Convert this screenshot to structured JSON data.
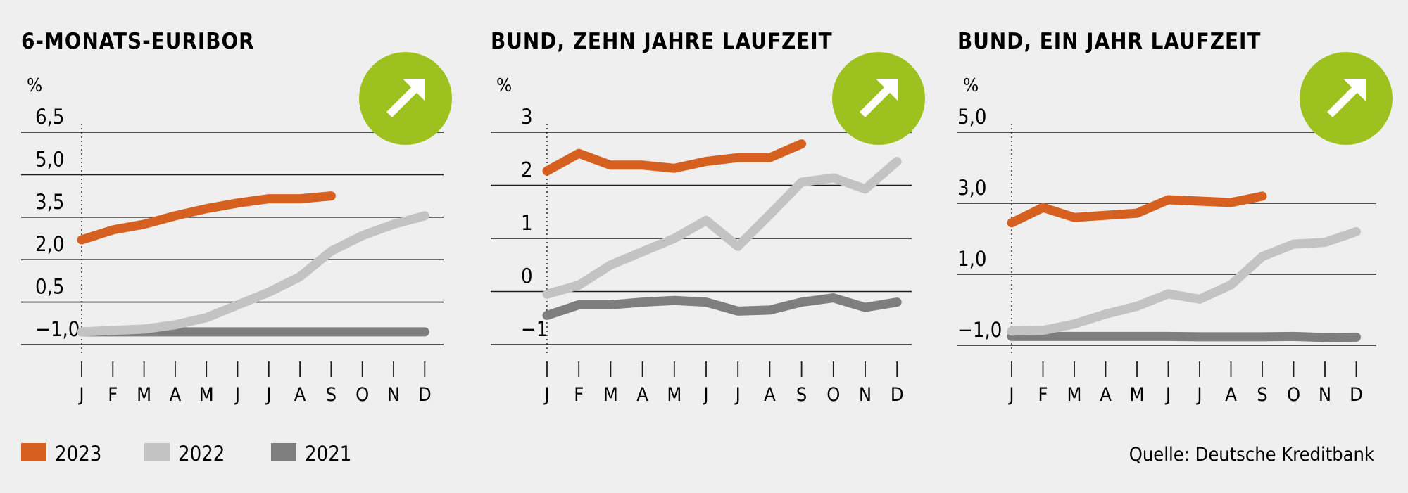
{
  "colors": {
    "series_2023": "#d5601f",
    "series_2022": "#c3c3c3",
    "series_2021": "#7e7e7e",
    "badge": "#9dc21f",
    "background": "#efefef",
    "gridline": "#1d1d1b"
  },
  "badge_icon": "arrow-up-right-icon",
  "legend": [
    {
      "key": "2023",
      "label": "2023",
      "color": "#d5601f"
    },
    {
      "key": "2022",
      "label": "2022",
      "color": "#c3c3c3"
    },
    {
      "key": "2021",
      "label": "2021",
      "color": "#7e7e7e"
    }
  ],
  "source": "Quelle: Deutsche Kreditbank",
  "chart_data": [
    {
      "type": "line",
      "title": "6-MONATS-EURIBOR",
      "unit": "%",
      "x": [
        "J",
        "F",
        "M",
        "A",
        "M",
        "J",
        "J",
        "A",
        "S",
        "O",
        "N",
        "D"
      ],
      "yticks": [
        -1.0,
        0.5,
        2.0,
        3.5,
        5.0,
        6.5
      ],
      "ytick_labels": [
        "−1,0",
        "0,5",
        "2,0",
        "3,5",
        "5,0",
        "6,5"
      ],
      "ylim": [
        -1.0,
        6.5
      ],
      "grid": true,
      "series": [
        {
          "name": "2023",
          "values": [
            2.7,
            3.05,
            3.25,
            3.55,
            3.8,
            4.0,
            4.15,
            4.15,
            4.25,
            null,
            null,
            null
          ]
        },
        {
          "name": "2022",
          "values": [
            -0.55,
            -0.5,
            -0.45,
            -0.3,
            -0.05,
            0.4,
            0.85,
            1.4,
            2.3,
            2.85,
            3.25,
            3.55
          ]
        },
        {
          "name": "2021",
          "values": [
            -0.55,
            -0.55,
            -0.55,
            -0.55,
            -0.55,
            -0.55,
            -0.55,
            -0.55,
            -0.55,
            -0.55,
            -0.55,
            -0.55
          ]
        }
      ]
    },
    {
      "type": "line",
      "title": "BUND, ZEHN JAHRE LAUFZEIT",
      "unit": "%",
      "x": [
        "J",
        "F",
        "M",
        "A",
        "M",
        "J",
        "J",
        "A",
        "S",
        "O",
        "N",
        "D"
      ],
      "yticks": [
        -1,
        0,
        1,
        2,
        3
      ],
      "ytick_labels": [
        "−1",
        "0",
        "1",
        "2",
        "3"
      ],
      "ylim": [
        -1,
        3
      ],
      "grid": true,
      "series": [
        {
          "name": "2023",
          "values": [
            2.27,
            2.6,
            2.38,
            2.38,
            2.32,
            2.45,
            2.52,
            2.52,
            2.78,
            null,
            null,
            null
          ]
        },
        {
          "name": "2022",
          "values": [
            -0.05,
            0.12,
            0.5,
            0.75,
            1.0,
            1.34,
            0.85,
            1.45,
            2.06,
            2.14,
            1.93,
            2.45
          ]
        },
        {
          "name": "2021",
          "values": [
            -0.45,
            -0.25,
            -0.25,
            -0.2,
            -0.17,
            -0.2,
            -0.37,
            -0.35,
            -0.2,
            -0.12,
            -0.3,
            -0.2
          ]
        }
      ]
    },
    {
      "type": "line",
      "title": "BUND, EIN JAHR LAUFZEIT",
      "unit": "%",
      "x": [
        "J",
        "F",
        "M",
        "A",
        "M",
        "J",
        "J",
        "A",
        "S",
        "O",
        "N",
        "D"
      ],
      "yticks": [
        -1.0,
        1.0,
        3.0,
        5.0
      ],
      "ytick_labels": [
        "−1,0",
        "1,0",
        "3,0",
        "5,0"
      ],
      "ylim": [
        -1.0,
        5.0
      ],
      "grid": true,
      "series": [
        {
          "name": "2023",
          "values": [
            2.45,
            2.88,
            2.6,
            2.66,
            2.72,
            3.1,
            3.06,
            3.02,
            3.2,
            null,
            null,
            null
          ]
        },
        {
          "name": "2022",
          "values": [
            -0.6,
            -0.58,
            -0.4,
            -0.12,
            0.1,
            0.45,
            0.3,
            0.7,
            1.5,
            1.85,
            1.9,
            2.2
          ]
        },
        {
          "name": "2021",
          "values": [
            -0.75,
            -0.75,
            -0.75,
            -0.75,
            -0.75,
            -0.75,
            -0.76,
            -0.76,
            -0.76,
            -0.75,
            -0.78,
            -0.77
          ]
        }
      ]
    }
  ]
}
